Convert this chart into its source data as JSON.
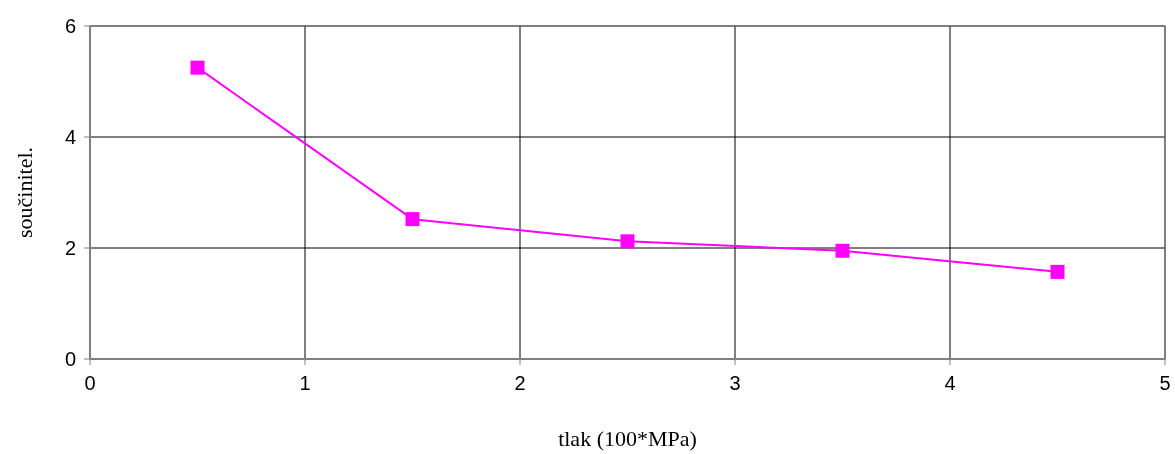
{
  "chart_data": {
    "type": "line",
    "xlabel": "tlak (100*MPa)",
    "ylabel": "součinitel.",
    "x": [
      0.5,
      1.5,
      2.5,
      3.5,
      4.5
    ],
    "series": [
      {
        "color": "#ff00ff",
        "values": [
          5.25,
          2.52,
          2.12,
          1.95,
          1.57
        ]
      }
    ],
    "xlim": [
      0,
      5
    ],
    "xticks": [
      0,
      1,
      2,
      3,
      4,
      5
    ],
    "ylim": [
      0,
      6
    ],
    "yticks": [
      0,
      2,
      4,
      6
    ],
    "grid": true,
    "marker": "square",
    "line_style": "solid"
  }
}
